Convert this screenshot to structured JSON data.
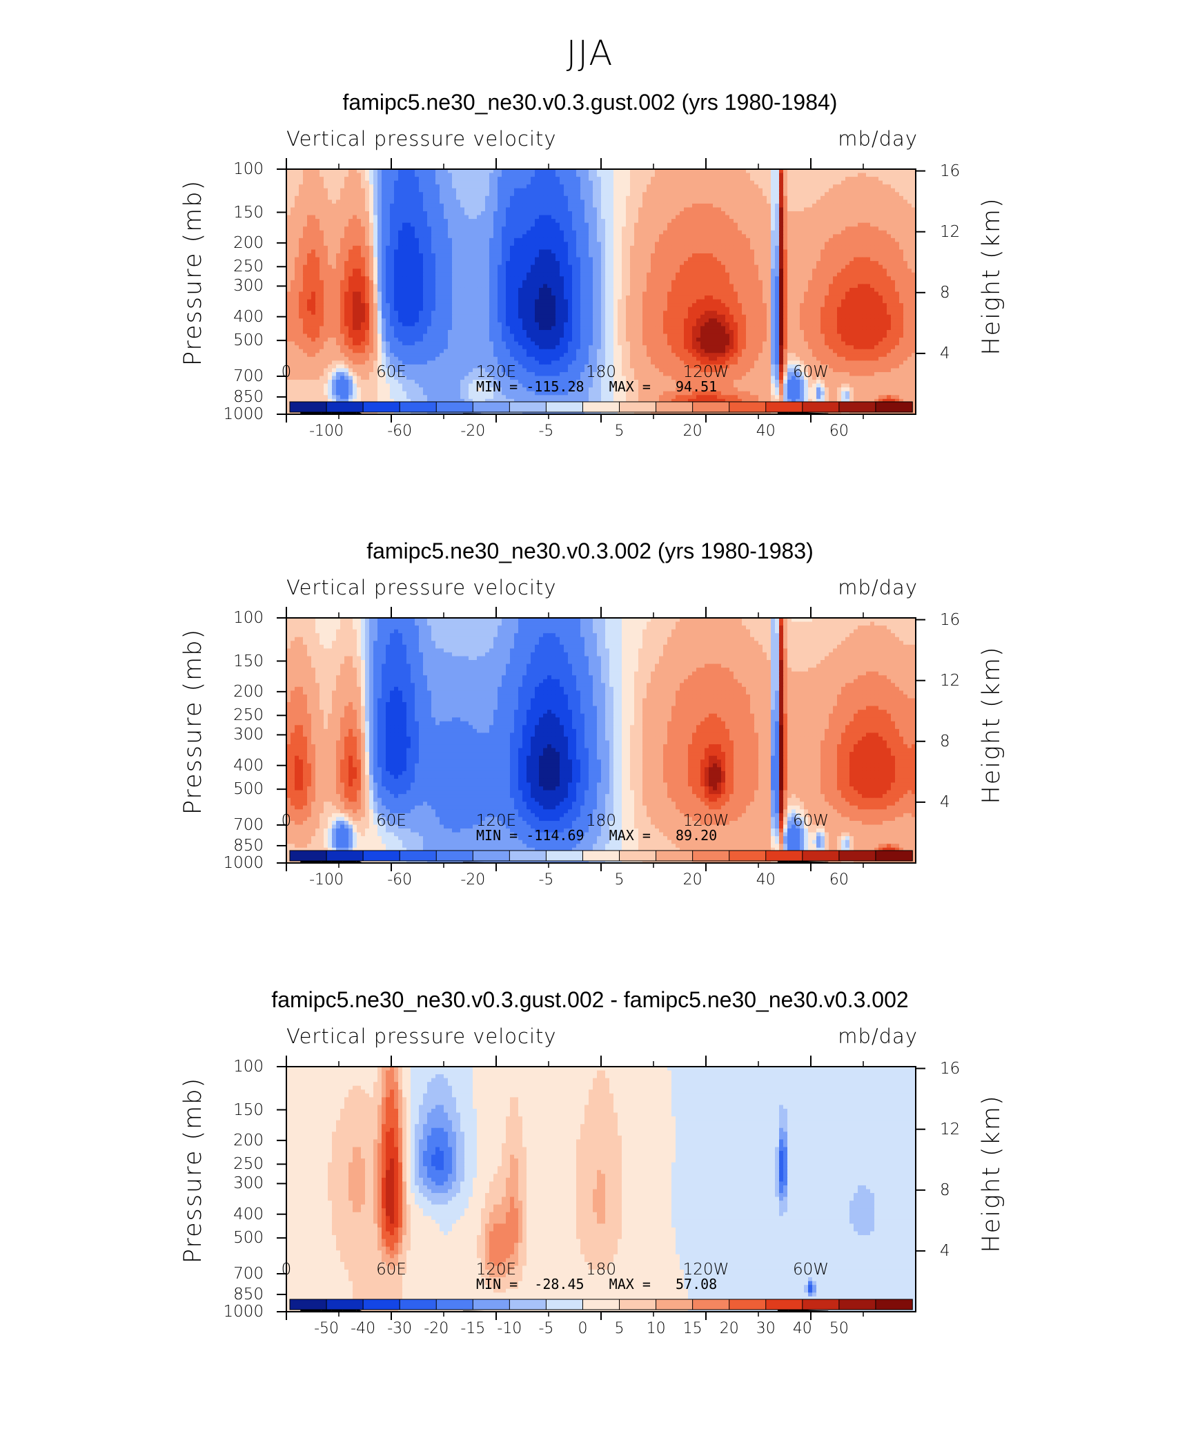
{
  "title": "JJA",
  "chart_data": [
    {
      "type": "heatmap",
      "case_title": "famipc5.ne30_ne30.v0.3.gust.002 (yrs 1980-1984)",
      "variable": "Vertical pressure velocity",
      "units": "mb/day",
      "ylabel": "Pressure (mb)",
      "y2label": "Height (km)",
      "pressure_ticks": [
        "100",
        "150",
        "200",
        "250",
        "300",
        "400",
        "500",
        "700",
        "850",
        "1000"
      ],
      "height_ticks": [
        "16",
        "12",
        "8",
        "4"
      ],
      "lon_ticks": [
        "0",
        "60E",
        "120E",
        "180",
        "120W",
        "60W"
      ],
      "min_max": "MIN = -115.28   MAX =   94.51",
      "colorbar_labels": [
        "-100",
        "-60",
        "-20",
        "-5",
        "5",
        "20",
        "40",
        "60"
      ],
      "colorbar_levels": [
        -120,
        -100,
        -80,
        -60,
        -40,
        -20,
        -10,
        -5,
        0,
        5,
        10,
        20,
        30,
        40,
        50,
        60,
        80
      ],
      "colorbar_colors": [
        "#0a1d8c",
        "#0a2ebd",
        "#1446e6",
        "#2e62f0",
        "#4d7ef5",
        "#7aa0f7",
        "#a7c2f9",
        "#d1e3fb",
        "#fde8d8",
        "#fcccb2",
        "#f8aa88",
        "#f48660",
        "#ee5f36",
        "#e03c1c",
        "#c22814",
        "#9a170e",
        "#7e0c08"
      ],
      "features": [
        {
          "lon": 15,
          "p": 350,
          "dlon": 9,
          "dp": 220,
          "v": 30
        },
        {
          "lon": 42,
          "p": 380,
          "dlon": 12,
          "dp": 220,
          "v": 55
        },
        {
          "lon": 32,
          "p": 780,
          "dlon": 6,
          "dp": 120,
          "v": -45
        },
        {
          "lon": 68,
          "p": 300,
          "dlon": 17,
          "dp": 260,
          "v": -75
        },
        {
          "lon": 110,
          "p": 800,
          "dlon": 10,
          "dp": 120,
          "v": 12
        },
        {
          "lon": 148,
          "p": 380,
          "dlon": 20,
          "dp": 290,
          "v": -95
        },
        {
          "lon": 128,
          "p": 300,
          "dlon": 8,
          "dp": 240,
          "v": -30
        },
        {
          "lon": 235,
          "p": 420,
          "dlon": 35,
          "dp": 330,
          "v": 28
        },
        {
          "lon": 245,
          "p": 500,
          "dlon": 12,
          "dp": 110,
          "v": 42
        },
        {
          "lon": 240,
          "p": 880,
          "dlon": 25,
          "dp": 70,
          "v": 30
        },
        {
          "lon": 280,
          "p": 430,
          "dlon": 2,
          "dp": 300,
          "v": -80
        },
        {
          "lon": 283,
          "p": 400,
          "dlon": 2,
          "dp": 400,
          "v": 80
        },
        {
          "lon": 290,
          "p": 800,
          "dlon": 7,
          "dp": 170,
          "v": -45
        },
        {
          "lon": 330,
          "p": 420,
          "dlon": 28,
          "dp": 230,
          "v": 40
        },
        {
          "lon": 345,
          "p": 900,
          "dlon": 7,
          "dp": 60,
          "v": 40
        },
        {
          "lon": 305,
          "p": 820,
          "dlon": 3,
          "dp": 90,
          "v": -25
        },
        {
          "lon": 320,
          "p": 840,
          "dlon": 3,
          "dp": 80,
          "v": -20
        }
      ],
      "base": [
        {
          "lon": 15,
          "v": 8
        },
        {
          "lon": 50,
          "v": 6
        },
        {
          "lon": 90,
          "v": -15
        },
        {
          "lon": 130,
          "v": -8
        },
        {
          "lon": 160,
          "v": -15
        },
        {
          "lon": 205,
          "v": 8
        },
        {
          "lon": 250,
          "v": 12
        },
        {
          "lon": 330,
          "v": 10
        }
      ],
      "topography": [
        {
          "lon": 8,
          "p": 980
        },
        {
          "lon": 20,
          "p": 980
        },
        {
          "lon": 26,
          "p": 965
        },
        {
          "lon": 32,
          "p": 945
        },
        {
          "lon": 40,
          "p": 970
        },
        {
          "lon": 44,
          "p": 1000
        },
        {
          "lon": 101,
          "p": 990
        },
        {
          "lon": 104,
          "p": 990
        },
        {
          "lon": 118,
          "p": 995
        },
        {
          "lon": 120,
          "p": 995
        },
        {
          "lon": 281,
          "p": 975
        },
        {
          "lon": 287,
          "p": 975
        },
        {
          "lon": 300,
          "p": 985
        },
        {
          "lon": 310,
          "p": 990
        }
      ]
    },
    {
      "type": "heatmap",
      "case_title": "famipc5.ne30_ne30.v0.3.002 (yrs 1980-1983)",
      "variable": "Vertical pressure velocity",
      "units": "mb/day",
      "ylabel": "Pressure (mb)",
      "y2label": "Height (km)",
      "pressure_ticks": [
        "100",
        "150",
        "200",
        "250",
        "300",
        "400",
        "500",
        "700",
        "850",
        "1000"
      ],
      "height_ticks": [
        "16",
        "12",
        "8",
        "4"
      ],
      "lon_ticks": [
        "0",
        "60E",
        "120E",
        "180",
        "120W",
        "60W"
      ],
      "min_max": "MIN = -114.69   MAX =   89.20",
      "colorbar_labels": [
        "-100",
        "-60",
        "-20",
        "-5",
        "5",
        "20",
        "40",
        "60"
      ],
      "colorbar_levels": [
        -120,
        -100,
        -80,
        -60,
        -40,
        -20,
        -10,
        -5,
        0,
        5,
        10,
        20,
        30,
        40,
        50,
        60,
        80
      ],
      "colorbar_colors": [
        "#0a1d8c",
        "#0a2ebd",
        "#1446e6",
        "#2e62f0",
        "#4d7ef5",
        "#7aa0f7",
        "#a7c2f9",
        "#d1e3fb",
        "#fde8d8",
        "#fcccb2",
        "#f8aa88",
        "#f48660",
        "#ee5f36",
        "#e03c1c",
        "#c22814",
        "#9a170e",
        "#7e0c08"
      ],
      "features": [
        {
          "lon": 8,
          "p": 450,
          "dlon": 8,
          "dp": 250,
          "v": 28
        },
        {
          "lon": 38,
          "p": 420,
          "dlon": 9,
          "dp": 220,
          "v": 40
        },
        {
          "lon": 32,
          "p": 780,
          "dlon": 6,
          "dp": 120,
          "v": -45
        },
        {
          "lon": 62,
          "p": 320,
          "dlon": 14,
          "dp": 260,
          "v": -75
        },
        {
          "lon": 100,
          "p": 500,
          "dlon": 15,
          "dp": 200,
          "v": -25
        },
        {
          "lon": 150,
          "p": 420,
          "dlon": 21,
          "dp": 300,
          "v": -95
        },
        {
          "lon": 240,
          "p": 400,
          "dlon": 30,
          "dp": 300,
          "v": 24
        },
        {
          "lon": 245,
          "p": 450,
          "dlon": 6,
          "dp": 100,
          "v": 35
        },
        {
          "lon": 280,
          "p": 430,
          "dlon": 2,
          "dp": 300,
          "v": -80
        },
        {
          "lon": 283,
          "p": 400,
          "dlon": 2,
          "dp": 400,
          "v": 80
        },
        {
          "lon": 290,
          "p": 800,
          "dlon": 7,
          "dp": 170,
          "v": -45
        },
        {
          "lon": 335,
          "p": 420,
          "dlon": 25,
          "dp": 230,
          "v": 40
        },
        {
          "lon": 345,
          "p": 900,
          "dlon": 7,
          "dp": 60,
          "v": 40
        },
        {
          "lon": 305,
          "p": 820,
          "dlon": 3,
          "dp": 90,
          "v": -25
        },
        {
          "lon": 320,
          "p": 840,
          "dlon": 3,
          "dp": 80,
          "v": -20
        }
      ],
      "base": [
        {
          "lon": 15,
          "v": 8
        },
        {
          "lon": 50,
          "v": 4
        },
        {
          "lon": 90,
          "v": -15
        },
        {
          "lon": 130,
          "v": -10
        },
        {
          "lon": 160,
          "v": -15
        },
        {
          "lon": 205,
          "v": 6
        },
        {
          "lon": 250,
          "v": 12
        },
        {
          "lon": 330,
          "v": 10
        }
      ],
      "topography": [
        {
          "lon": 8,
          "p": 980
        },
        {
          "lon": 20,
          "p": 980
        },
        {
          "lon": 26,
          "p": 965
        },
        {
          "lon": 32,
          "p": 945
        },
        {
          "lon": 40,
          "p": 970
        },
        {
          "lon": 44,
          "p": 1000
        },
        {
          "lon": 101,
          "p": 990
        },
        {
          "lon": 104,
          "p": 990
        },
        {
          "lon": 118,
          "p": 995
        },
        {
          "lon": 120,
          "p": 995
        },
        {
          "lon": 281,
          "p": 975
        },
        {
          "lon": 287,
          "p": 975
        },
        {
          "lon": 300,
          "p": 985
        },
        {
          "lon": 310,
          "p": 990
        }
      ]
    },
    {
      "type": "heatmap",
      "case_title": "famipc5.ne30_ne30.v0.3.gust.002 - famipc5.ne30_ne30.v0.3.002",
      "variable": "Vertical pressure velocity",
      "units": "mb/day",
      "ylabel": "Pressure (mb)",
      "y2label": "Height (km)",
      "pressure_ticks": [
        "100",
        "150",
        "200",
        "250",
        "300",
        "400",
        "500",
        "700",
        "850",
        "1000"
      ],
      "height_ticks": [
        "16",
        "12",
        "8",
        "4"
      ],
      "lon_ticks": [
        "0",
        "60E",
        "120E",
        "180",
        "120W",
        "60W"
      ],
      "min_max": "MIN =  -28.45   MAX =   57.08",
      "colorbar_labels": [
        "-50",
        "-40",
        "-30",
        "-20",
        "-15",
        "-10",
        "-5",
        "0",
        "5",
        "10",
        "15",
        "20",
        "30",
        "40",
        "50"
      ],
      "colorbar_levels": [
        -60,
        -50,
        -40,
        -30,
        -20,
        -15,
        -10,
        -5,
        0,
        5,
        10,
        15,
        20,
        30,
        40,
        50,
        60
      ],
      "colorbar_colors": [
        "#0a1d8c",
        "#0a2ebd",
        "#1446e6",
        "#2e62f0",
        "#4d7ef5",
        "#7aa0f7",
        "#a7c2f9",
        "#d1e3fb",
        "#fde8d8",
        "#fcccb2",
        "#f8aa88",
        "#f48660",
        "#ee5f36",
        "#e03c1c",
        "#c22814",
        "#9a170e",
        "#7e0c08"
      ],
      "features": [
        {
          "lon": 60,
          "p": 330,
          "dlon": 6,
          "dp": 220,
          "v": 42
        },
        {
          "lon": 86,
          "p": 240,
          "dlon": 14,
          "dp": 110,
          "v": -22
        },
        {
          "lon": 120,
          "p": 550,
          "dlon": 8,
          "dp": 200,
          "v": 17
        },
        {
          "lon": 130,
          "p": 420,
          "dlon": 5,
          "dp": 250,
          "v": 12
        },
        {
          "lon": 180,
          "p": 350,
          "dlon": 12,
          "dp": 300,
          "v": 8
        },
        {
          "lon": 284,
          "p": 260,
          "dlon": 2,
          "dp": 80,
          "v": -25
        },
        {
          "lon": 300,
          "p": 800,
          "dlon": 2,
          "dp": 50,
          "v": -25
        },
        {
          "lon": 330,
          "p": 400,
          "dlon": 8,
          "dp": 100,
          "v": -7
        },
        {
          "lon": 265,
          "p": 350,
          "dlon": 35,
          "dp": 300,
          "v": -3
        },
        {
          "lon": 40,
          "p": 300,
          "dlon": 10,
          "dp": 200,
          "v": 6
        }
      ],
      "base": [
        {
          "lon": 15,
          "v": 4
        },
        {
          "lon": 60,
          "v": 6
        },
        {
          "lon": 90,
          "v": 0
        },
        {
          "lon": 140,
          "v": 4
        },
        {
          "lon": 200,
          "v": 2
        },
        {
          "lon": 260,
          "v": -2
        },
        {
          "lon": 330,
          "v": -2
        }
      ],
      "topography": [
        {
          "lon": 8,
          "p": 980
        },
        {
          "lon": 20,
          "p": 980
        },
        {
          "lon": 26,
          "p": 965
        },
        {
          "lon": 32,
          "p": 945
        },
        {
          "lon": 40,
          "p": 970
        },
        {
          "lon": 44,
          "p": 1000
        },
        {
          "lon": 101,
          "p": 990
        },
        {
          "lon": 104,
          "p": 990
        },
        {
          "lon": 118,
          "p": 995
        },
        {
          "lon": 120,
          "p": 995
        },
        {
          "lon": 281,
          "p": 975
        },
        {
          "lon": 287,
          "p": 975
        },
        {
          "lon": 300,
          "p": 985
        },
        {
          "lon": 310,
          "p": 990
        }
      ]
    }
  ]
}
